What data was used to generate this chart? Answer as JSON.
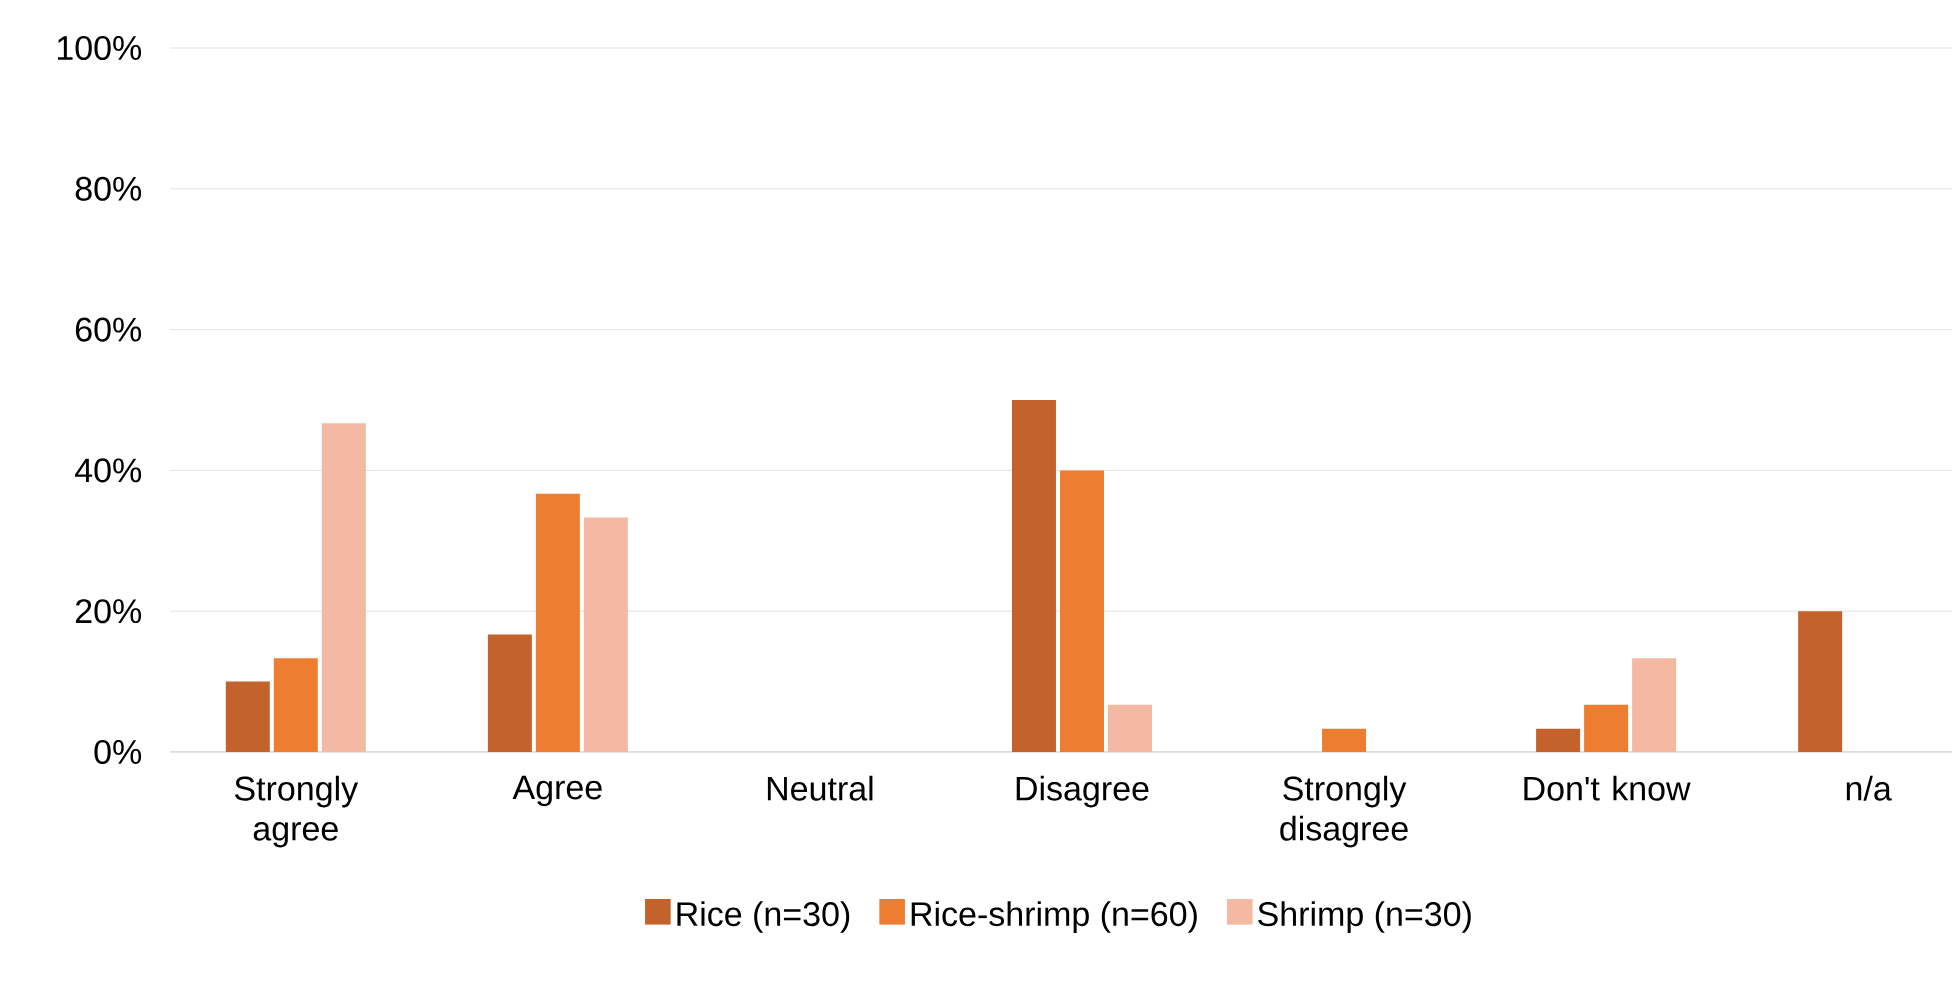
{
  "chart_data": {
    "type": "bar",
    "categories": [
      "Strongly agree",
      "Agree",
      "Neutral",
      "Disagree",
      "Strongly disagree",
      "Don't know",
      "n/a"
    ],
    "series": [
      {
        "name": "Rice (n=30)",
        "color": "#c4622b",
        "values": [
          10.0,
          16.7,
          0,
          50.0,
          0,
          3.3,
          20.0
        ]
      },
      {
        "name": "Rice-shrimp (n=60)",
        "color": "#ed7d31",
        "values": [
          13.3,
          36.7,
          0,
          40.0,
          3.3,
          6.7,
          0
        ]
      },
      {
        "name": "Shrimp (n=30)",
        "color": "#f4b9a3",
        "values": [
          46.7,
          33.3,
          0,
          6.7,
          0,
          13.3,
          0
        ]
      }
    ],
    "ylim": [
      0,
      100
    ],
    "yticks": [
      {
        "value": 0,
        "label": "0%"
      },
      {
        "value": 20,
        "label": "20%"
      },
      {
        "value": 40,
        "label": "40%"
      },
      {
        "value": 60,
        "label": "60%"
      },
      {
        "value": 80,
        "label": "80%"
      },
      {
        "value": 100,
        "label": "100%"
      }
    ],
    "grid": "y",
    "legend": "bottom"
  }
}
